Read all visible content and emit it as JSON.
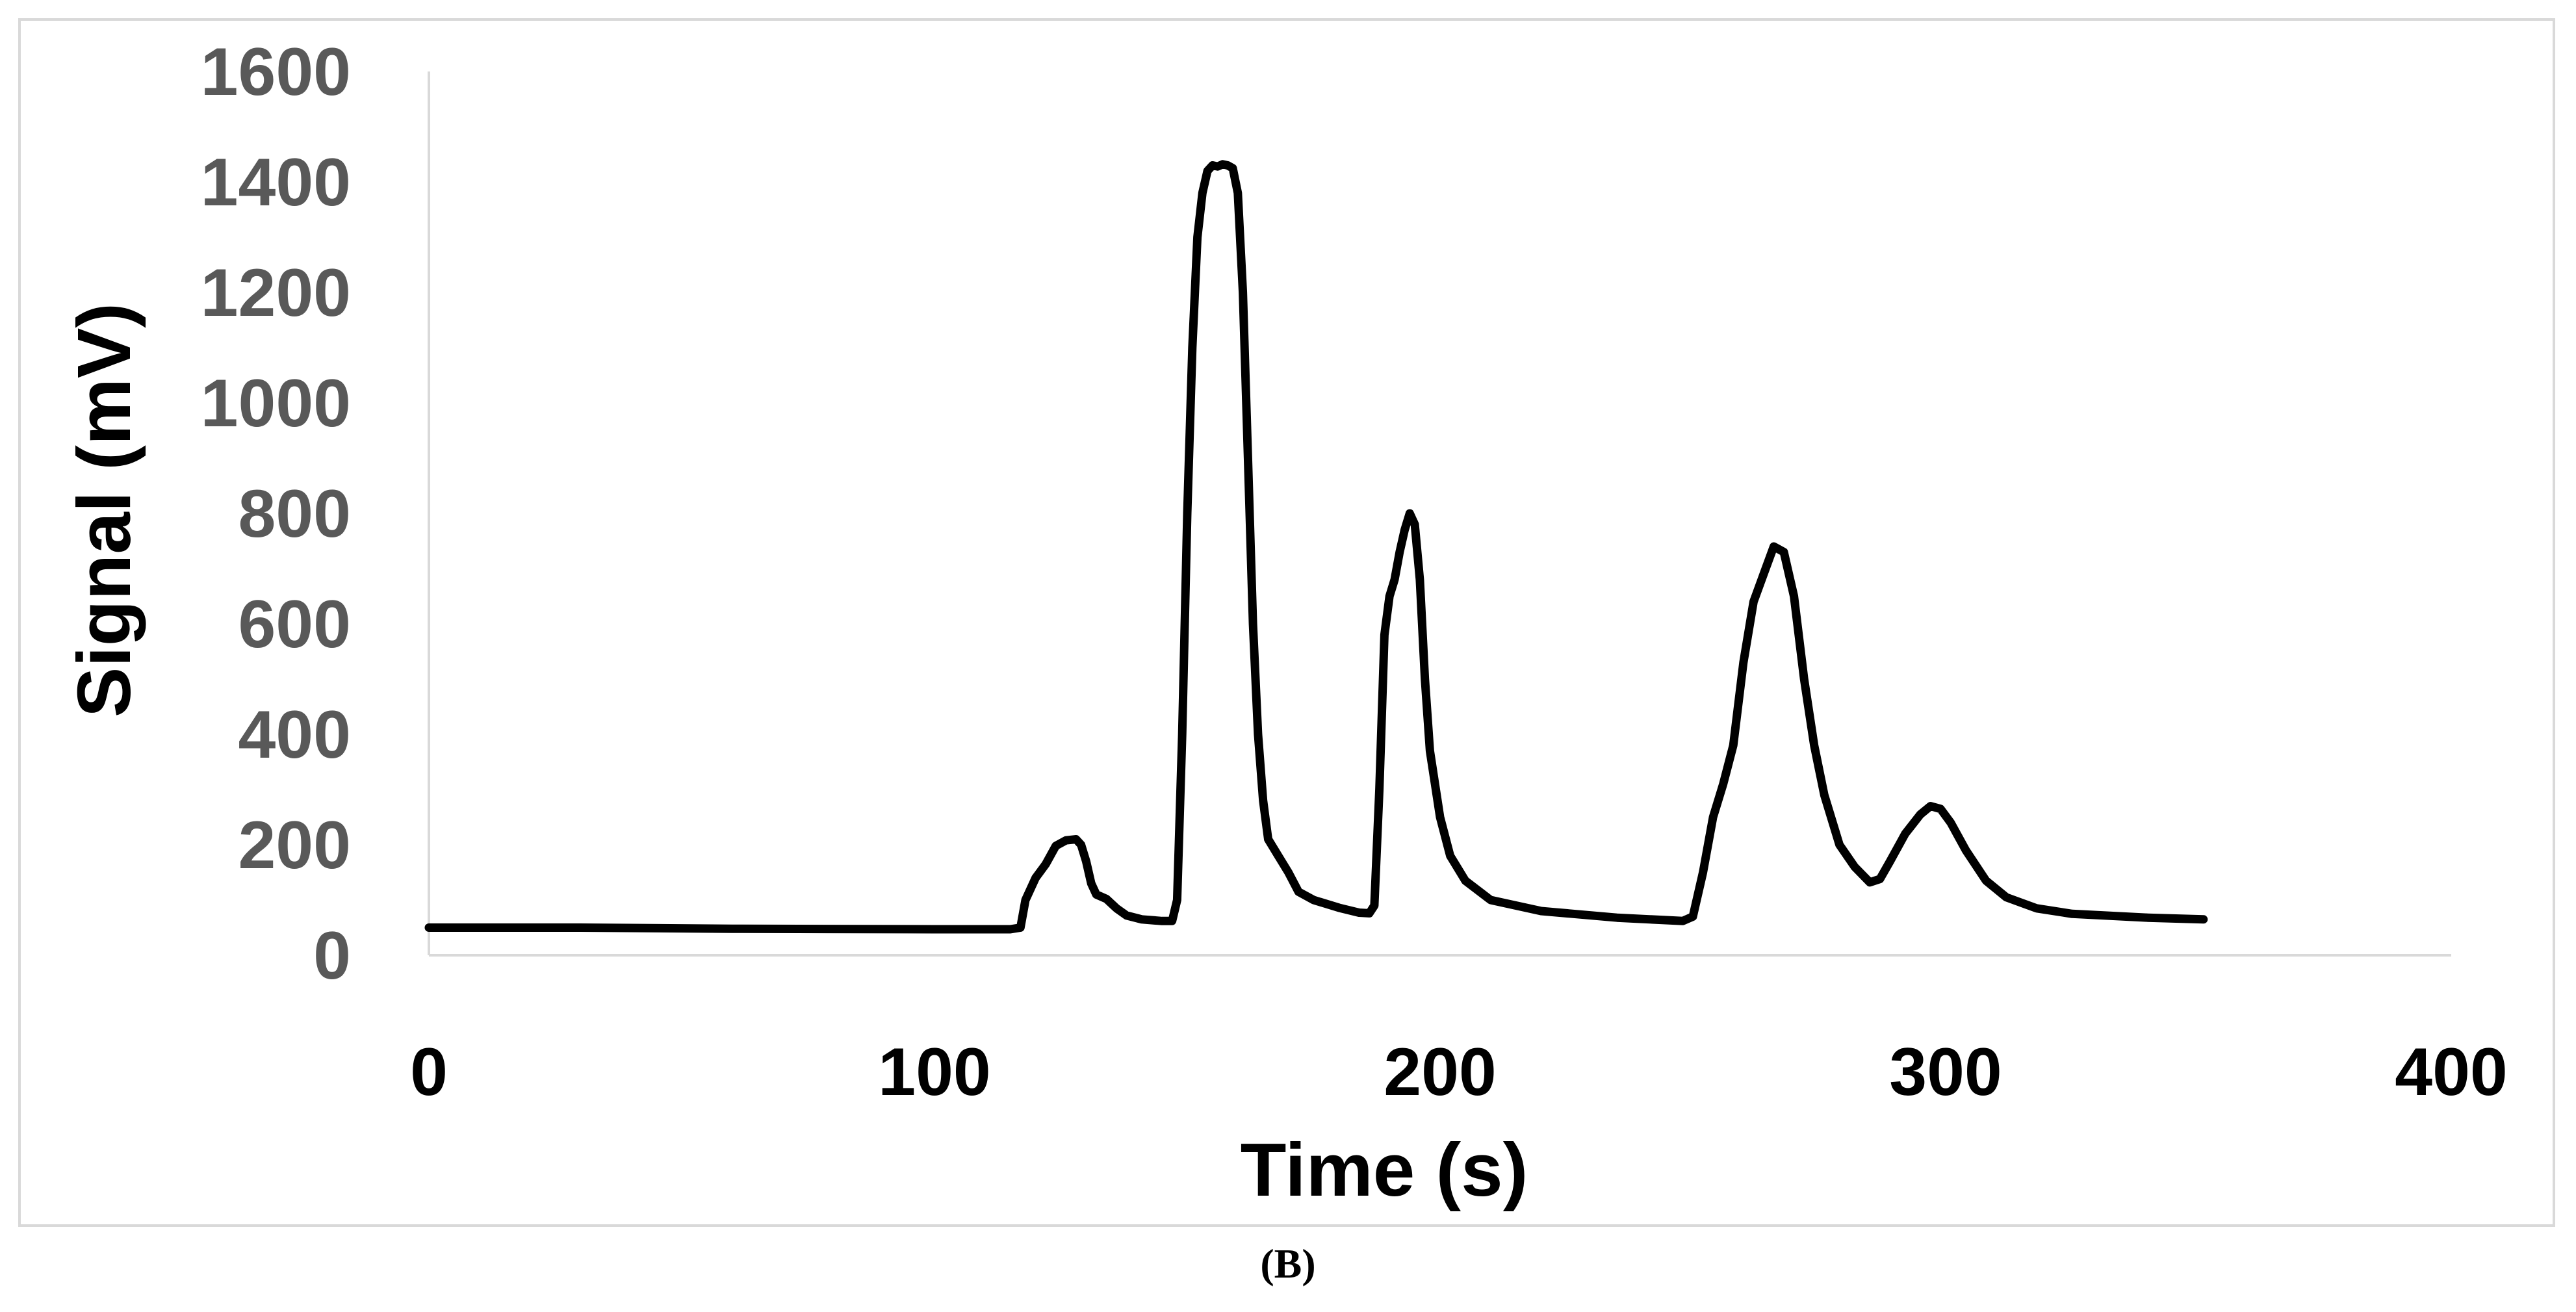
{
  "caption": "(B)",
  "chart_data": {
    "type": "line",
    "xlabel": "Time (s)",
    "ylabel": "Signal (mV)",
    "xlim": [
      0,
      400
    ],
    "ylim": [
      0,
      1600
    ],
    "x_ticks": [
      0,
      100,
      200,
      300,
      400
    ],
    "y_ticks": [
      0,
      200,
      400,
      600,
      800,
      1000,
      1200,
      1400,
      1600
    ],
    "grid": false,
    "legend": "none",
    "line_color": "#000000",
    "axis_color": "#d9d9d9",
    "series": [
      {
        "points": [
          [
            0,
            50
          ],
          [
            30,
            50
          ],
          [
            60,
            48
          ],
          [
            100,
            47
          ],
          [
            115,
            47
          ],
          [
            117,
            50
          ],
          [
            118,
            100
          ],
          [
            120,
            140
          ],
          [
            122,
            165
          ],
          [
            124,
            198
          ],
          [
            126,
            208
          ],
          [
            128,
            210
          ],
          [
            129,
            200
          ],
          [
            130,
            170
          ],
          [
            131,
            130
          ],
          [
            132,
            110
          ],
          [
            134,
            102
          ],
          [
            136,
            85
          ],
          [
            138,
            72
          ],
          [
            141,
            65
          ],
          [
            145,
            62
          ],
          [
            147,
            62
          ],
          [
            148,
            100
          ],
          [
            149,
            400
          ],
          [
            150,
            800
          ],
          [
            151,
            1100
          ],
          [
            152,
            1300
          ],
          [
            153,
            1380
          ],
          [
            154,
            1420
          ],
          [
            155,
            1430
          ],
          [
            156,
            1428
          ],
          [
            157,
            1432
          ],
          [
            158,
            1430
          ],
          [
            159,
            1425
          ],
          [
            160,
            1380
          ],
          [
            161,
            1200
          ],
          [
            162,
            900
          ],
          [
            163,
            600
          ],
          [
            164,
            400
          ],
          [
            165,
            280
          ],
          [
            166,
            210
          ],
          [
            168,
            180
          ],
          [
            170,
            150
          ],
          [
            172,
            115
          ],
          [
            175,
            100
          ],
          [
            180,
            86
          ],
          [
            184,
            77
          ],
          [
            186,
            76
          ],
          [
            187,
            90
          ],
          [
            188,
            300
          ],
          [
            189,
            580
          ],
          [
            190,
            650
          ],
          [
            191,
            680
          ],
          [
            192,
            730
          ],
          [
            193,
            770
          ],
          [
            194,
            800
          ],
          [
            195,
            780
          ],
          [
            196,
            680
          ],
          [
            197,
            500
          ],
          [
            198,
            370
          ],
          [
            200,
            250
          ],
          [
            202,
            180
          ],
          [
            205,
            135
          ],
          [
            210,
            100
          ],
          [
            220,
            80
          ],
          [
            235,
            68
          ],
          [
            248,
            62
          ],
          [
            250,
            70
          ],
          [
            252,
            150
          ],
          [
            254,
            250
          ],
          [
            256,
            310
          ],
          [
            258,
            380
          ],
          [
            260,
            530
          ],
          [
            262,
            640
          ],
          [
            264,
            690
          ],
          [
            266,
            740
          ],
          [
            268,
            730
          ],
          [
            270,
            650
          ],
          [
            272,
            500
          ],
          [
            274,
            380
          ],
          [
            276,
            290
          ],
          [
            279,
            200
          ],
          [
            282,
            160
          ],
          [
            285,
            132
          ],
          [
            287,
            138
          ],
          [
            289,
            170
          ],
          [
            292,
            220
          ],
          [
            295,
            255
          ],
          [
            297,
            270
          ],
          [
            299,
            265
          ],
          [
            301,
            240
          ],
          [
            304,
            190
          ],
          [
            308,
            135
          ],
          [
            312,
            105
          ],
          [
            318,
            85
          ],
          [
            325,
            75
          ],
          [
            340,
            68
          ],
          [
            351,
            65
          ]
        ]
      }
    ]
  }
}
